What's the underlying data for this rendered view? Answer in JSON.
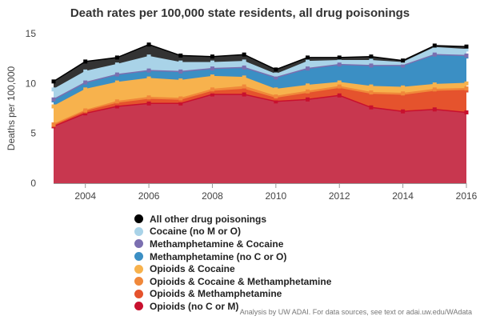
{
  "chart_data": {
    "type": "area",
    "stacked": true,
    "title": "Death rates per 100,000 state residents, all drug poisonings",
    "xlabel": "",
    "ylabel": "Deaths per 100,000",
    "xlim": [
      2003,
      2016
    ],
    "ylim": [
      0,
      15
    ],
    "grid": false,
    "legend_position": "bottom",
    "x": [
      2003,
      2004,
      2005,
      2006,
      2007,
      2008,
      2009,
      2010,
      2011,
      2012,
      2013,
      2014,
      2015,
      2016
    ],
    "x_ticks": [
      2004,
      2006,
      2008,
      2010,
      2012,
      2014,
      2016
    ],
    "y_ticks": [
      0,
      5,
      10,
      15
    ],
    "series": [
      {
        "name": "Opioids (no C or M)",
        "color": "#c8374f",
        "values": [
          5.7,
          7.0,
          7.7,
          8.0,
          8.0,
          8.9,
          8.9,
          8.2,
          8.4,
          8.8,
          7.6,
          7.2,
          7.4,
          7.1
        ]
      },
      {
        "name": "Opioids & Methamphetamine",
        "color": "#e5532d",
        "values": [
          0.1,
          0.2,
          0.3,
          0.4,
          0.3,
          0.3,
          0.5,
          0.3,
          0.6,
          0.7,
          1.3,
          1.6,
          1.8,
          2.2
        ]
      },
      {
        "name": "Opioids & Cocaine & Methamphetamine",
        "color": "#f0883a",
        "values": [
          0.1,
          0.1,
          0.2,
          0.2,
          0.2,
          0.2,
          0.3,
          0.2,
          0.2,
          0.2,
          0.2,
          0.2,
          0.2,
          0.2
        ]
      },
      {
        "name": "Opioids & Cocaine",
        "color": "#f7b24d",
        "values": [
          1.8,
          2.1,
          1.9,
          1.9,
          1.8,
          1.3,
          0.9,
          0.7,
          0.6,
          0.4,
          0.6,
          0.6,
          0.5,
          0.5
        ]
      },
      {
        "name": "Methamphetamine (no C or O)",
        "color": "#3b8fc4",
        "values": [
          0.6,
          0.6,
          0.7,
          0.7,
          0.8,
          0.7,
          0.9,
          1.1,
          1.6,
          1.7,
          2.0,
          2.1,
          2.9,
          2.7
        ]
      },
      {
        "name": "Methamphetamine & Cocaine",
        "color": "#7b6fb0",
        "values": [
          0.1,
          0.1,
          0.1,
          0.1,
          0.1,
          0.1,
          0.1,
          0.1,
          0.1,
          0.1,
          0.1,
          0.1,
          0.1,
          0.1
        ]
      },
      {
        "name": "Cocaine (no M or O)",
        "color": "#a9d3e8",
        "values": [
          1.0,
          1.1,
          1.0,
          1.4,
          0.9,
          0.6,
          0.6,
          0.3,
          0.7,
          0.4,
          0.5,
          0.3,
          0.7,
          0.6
        ]
      },
      {
        "name": "All other drug poisonings",
        "color": "#333333",
        "values": [
          0.8,
          1.0,
          0.7,
          1.2,
          0.7,
          0.6,
          0.7,
          0.5,
          0.4,
          0.3,
          0.4,
          0.2,
          0.2,
          0.3
        ]
      }
    ],
    "legend_order": [
      "All other drug poisonings",
      "Cocaine (no M or O)",
      "Methamphetamine & Cocaine",
      "Methamphetamine (no C or O)",
      "Opioids & Cocaine",
      "Opioids & Cocaine & Methamphetamine",
      "Opioids & Methamphetamine",
      "Opioids (no C or M)"
    ],
    "legend_colors": {
      "All other drug poisonings": "#000000",
      "Cocaine (no M or O)": "#a9d3e8",
      "Methamphetamine & Cocaine": "#7b6fb0",
      "Methamphetamine (no C or O)": "#3b8fc4",
      "Opioids & Cocaine": "#f7b24d",
      "Opioids & Cocaine & Methamphetamine": "#f0883a",
      "Opioids & Methamphetamine": "#e5532d",
      "Opioids (no C or M)": "#c8102e"
    },
    "annotations": [
      "Analysis by UW ADAI. For data sources, see text or adai.uw.edu/WAdata"
    ]
  }
}
